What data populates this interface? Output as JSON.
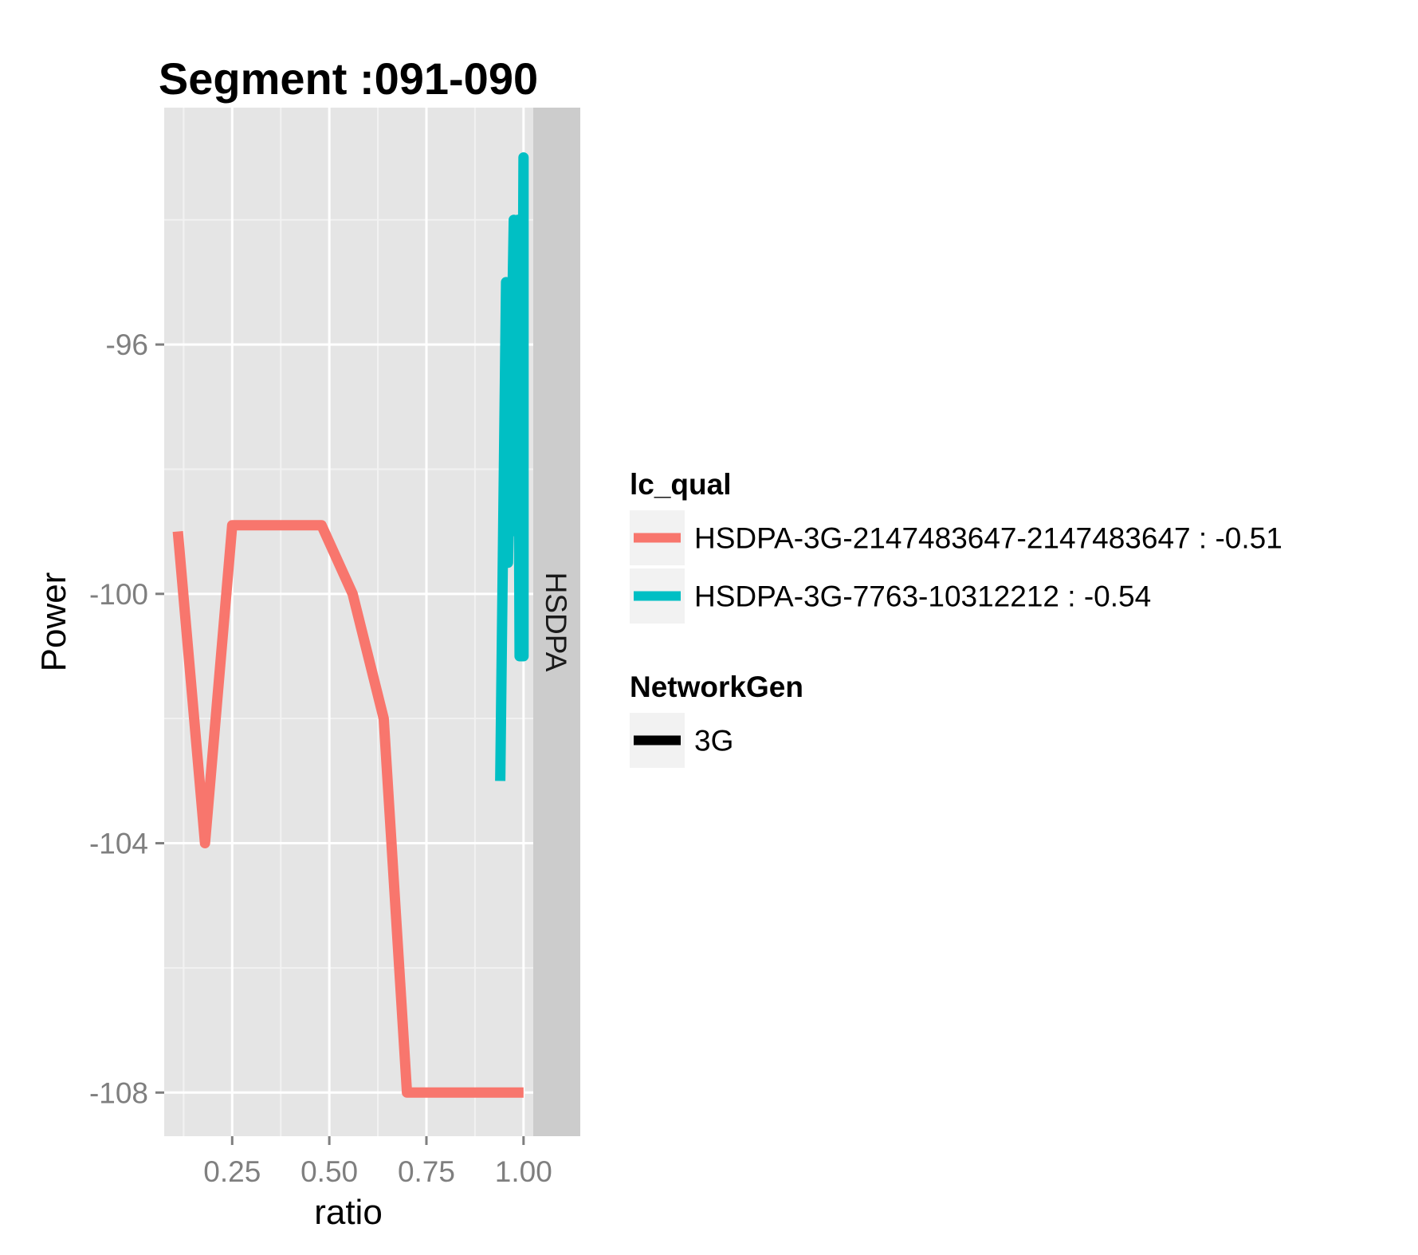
{
  "chart_data": {
    "type": "line",
    "title": "Segment :091-090",
    "xlabel": "ratio",
    "ylabel": "Power",
    "xlim": [
      0.075,
      1.025
    ],
    "ylim": [
      -108.7,
      -92.2
    ],
    "x_ticks": [
      0.25,
      0.5,
      0.75,
      1.0
    ],
    "x_tick_labels": [
      "0.25",
      "0.50",
      "0.75",
      "1.00"
    ],
    "y_ticks": [
      -108,
      -104,
      -100,
      -96
    ],
    "y_tick_labels": [
      "-108",
      "-104",
      "-100",
      "-96"
    ],
    "grid": true,
    "facet_label": "HSDPA",
    "legend_position": "right",
    "series": [
      {
        "name": "HSDPA-3G-2147483647-2147483647 : -0.51",
        "color": "#F8766D",
        "points": [
          [
            0.11,
            -99.0
          ],
          [
            0.18,
            -104.0
          ],
          [
            0.25,
            -98.9
          ],
          [
            0.48,
            -98.9
          ],
          [
            0.56,
            -100.0
          ],
          [
            0.64,
            -102.0
          ],
          [
            0.7,
            -108.0
          ],
          [
            1.0,
            -108.0
          ]
        ]
      },
      {
        "name": "HSDPA-3G-7763-10312212 : -0.54",
        "color": "#00BFC4",
        "points": [
          [
            0.94,
            -103.0
          ],
          [
            0.955,
            -95.0
          ],
          [
            0.96,
            -99.5
          ],
          [
            0.975,
            -94.0
          ],
          [
            0.98,
            -99.0
          ],
          [
            0.985,
            -94.0
          ],
          [
            0.99,
            -101.0
          ],
          [
            1.0,
            -101.0
          ],
          [
            1.0,
            -93.0
          ],
          [
            0.995,
            -99.0
          ]
        ]
      }
    ],
    "legends": [
      {
        "title": "lc_qual",
        "entries": [
          {
            "label": "HSDPA-3G-2147483647-2147483647 : -0.51",
            "color": "#F8766D"
          },
          {
            "label": "HSDPA-3G-7763-10312212 : -0.54",
            "color": "#00BFC4"
          }
        ]
      },
      {
        "title": "NetworkGen",
        "entries": [
          {
            "label": "3G",
            "color": "#000000"
          }
        ]
      }
    ]
  }
}
